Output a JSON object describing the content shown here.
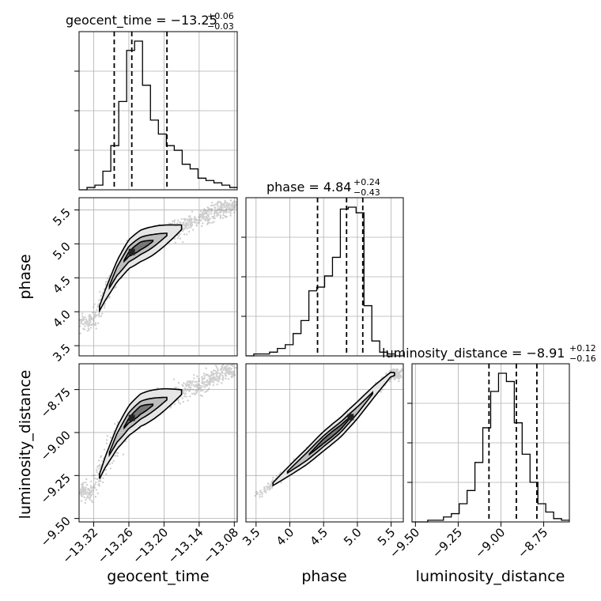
{
  "chart_data": {
    "type": "scatter",
    "kind": "corner-plot",
    "parameters": [
      "geocent_time",
      "phase",
      "luminosity_distance"
    ],
    "titles": [
      {
        "param": "geocent_time",
        "main": "geocent_time = −13.25",
        "plus": "+0.06",
        "minus": "−0.03"
      },
      {
        "param": "phase",
        "main": "phase = 4.84",
        "plus": "+0.24",
        "minus": "−0.43"
      },
      {
        "param": "luminosity_distance",
        "main": "luminosity_distance = −8.91",
        "plus": "+0.12",
        "minus": "−0.16"
      }
    ],
    "axes": {
      "geocent_time": {
        "range": [
          -13.345,
          -13.075
        ],
        "ticks": [
          -13.32,
          -13.26,
          -13.2,
          -13.14,
          -13.08
        ],
        "tick_labels": [
          "−13.32",
          "−13.26",
          "−13.20",
          "−13.14",
          "−13.08"
        ],
        "label": "geocent_time"
      },
      "phase": {
        "range": [
          3.35,
          5.68
        ],
        "ticks": [
          3.5,
          4.0,
          4.5,
          5.0,
          5.5
        ],
        "tick_labels": [
          "3.5",
          "4.0",
          "4.5",
          "5.0",
          "5.5"
        ],
        "label": "phase"
      },
      "luminosity_distance": {
        "range": [
          -9.52,
          -8.6
        ],
        "ticks": [
          -9.5,
          -9.25,
          -9.0,
          -8.75
        ],
        "tick_labels": [
          "−9.50",
          "−9.25",
          "−9.00",
          "−8.75"
        ],
        "label": "luminosity_distance"
      }
    },
    "histograms": {
      "geocent_time": {
        "bin_width": 0.01354,
        "bin_start": -13.345,
        "counts": [
          0,
          1,
          2,
          8,
          19,
          38,
          60,
          64,
          45,
          30,
          24,
          19,
          17,
          11,
          9,
          5,
          4,
          3,
          2,
          1
        ],
        "quantiles": [
          -13.285,
          -13.255,
          -13.195
        ]
      },
      "phase": {
        "bin_width": 0.1165,
        "bin_start": 3.35,
        "counts": [
          0,
          1,
          1,
          2,
          4,
          6,
          12,
          19,
          35,
          37,
          43,
          53,
          79,
          80,
          77,
          27,
          8,
          2,
          1,
          0
        ],
        "quantiles": [
          4.41,
          4.84,
          5.08
        ]
      },
      "luminosity_distance": {
        "bin_width": 0.046,
        "bin_start": -9.52,
        "counts": [
          0,
          0,
          1,
          1,
          3,
          5,
          11,
          19,
          36,
          57,
          79,
          90,
          85,
          60,
          41,
          24,
          11,
          6,
          2,
          1
        ],
        "quantiles": [
          -9.07,
          -8.91,
          -8.79
        ]
      }
    },
    "correlation_curves": {
      "phase_vs_geocent_time": {
        "x": [
          -13.32,
          -13.3,
          -13.28,
          -13.26,
          -13.24,
          -13.22,
          -13.2,
          -13.18,
          -13.16,
          -13.14,
          -13.12,
          -13.1,
          -13.08
        ],
        "y": [
          3.85,
          4.25,
          4.6,
          4.85,
          4.97,
          5.04,
          5.12,
          5.2,
          5.29,
          5.37,
          5.44,
          5.51,
          5.57
        ]
      },
      "luminosity_distance_vs_geocent_time": {
        "x": [
          -13.32,
          -13.3,
          -13.28,
          -13.26,
          -13.24,
          -13.22,
          -13.2,
          -13.18,
          -13.16,
          -13.14,
          -13.12,
          -13.1,
          -13.08
        ],
        "y": [
          -9.34,
          -9.17,
          -9.03,
          -8.93,
          -8.87,
          -8.84,
          -8.81,
          -8.78,
          -8.75,
          -8.72,
          -8.69,
          -8.66,
          -8.63
        ]
      },
      "luminosity_distance_vs_phase": {
        "x": [
          3.5,
          3.75,
          4.0,
          4.25,
          4.5,
          4.75,
          5.0,
          5.25,
          5.5
        ],
        "y": [
          -9.37,
          -9.3,
          -9.22,
          -9.14,
          -9.05,
          -8.97,
          -8.87,
          -8.76,
          -8.66
        ]
      }
    },
    "peaks": {
      "geocent_time": -13.255,
      "phase": 4.9,
      "luminosity_distance": -8.9
    },
    "grid": true,
    "colors": {
      "line": "#000000",
      "grid": "#b0b0b0",
      "points": "#777777",
      "fill_outer": "#e6e6e6",
      "fill_mid": "#bdbdbd",
      "fill_inner": "#777777",
      "peak": "#222222"
    }
  }
}
